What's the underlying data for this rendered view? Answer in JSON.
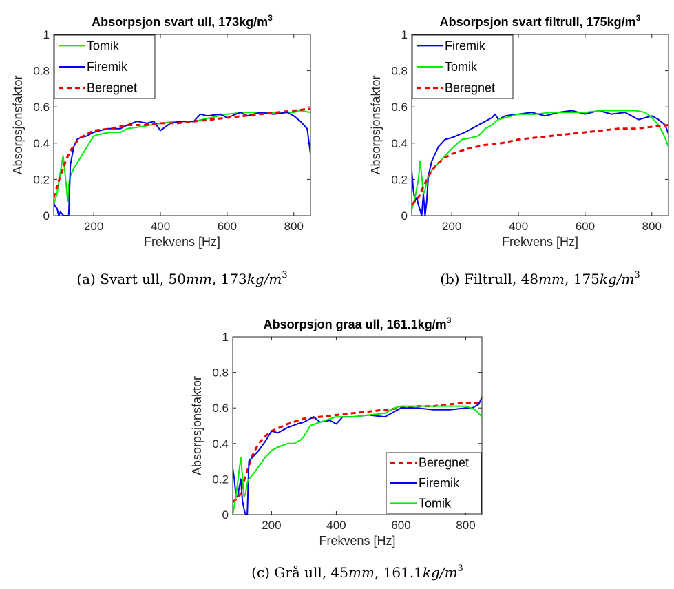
{
  "chart_data": [
    {
      "type": "line",
      "title": "Absorpsjon svart ull, 173kg/m",
      "title_sup": "3",
      "xlabel": "Frekvens [Hz]",
      "ylabel": "Absorpsjonsfaktor",
      "xlim": [
        80,
        850
      ],
      "ylim": [
        0,
        1
      ],
      "xticks": [
        "200",
        "400",
        "600",
        "800"
      ],
      "yticks": [
        "0",
        "0.2",
        "0.4",
        "0.6",
        "0.8",
        "1"
      ],
      "legend_position": "top-left",
      "caption": "(a) Svart ull, 50mm, 173kg/m",
      "caption_sup": "3",
      "series": [
        {
          "name": "Tomik",
          "color": "#00ee00",
          "dash": false,
          "x": [
            80,
            90,
            100,
            108,
            113,
            118,
            122,
            126,
            130,
            140,
            160,
            180,
            200,
            220,
            250,
            280,
            300,
            340,
            400,
            450,
            500,
            550,
            600,
            650,
            700,
            750,
            800,
            820,
            850
          ],
          "y": [
            0.06,
            0.12,
            0.24,
            0.33,
            0.25,
            0.16,
            0.08,
            0.18,
            0.22,
            0.26,
            0.32,
            0.38,
            0.44,
            0.45,
            0.46,
            0.46,
            0.48,
            0.49,
            0.51,
            0.52,
            0.52,
            0.54,
            0.56,
            0.57,
            0.57,
            0.57,
            0.57,
            0.58,
            0.57
          ]
        },
        {
          "name": "Firemik",
          "color": "#0000ee",
          "dash": false,
          "x": [
            80,
            85,
            90,
            95,
            100,
            105,
            110,
            115,
            120,
            125,
            130,
            140,
            150,
            160,
            180,
            200,
            240,
            280,
            300,
            330,
            360,
            380,
            400,
            430,
            460,
            500,
            520,
            540,
            580,
            600,
            640,
            660,
            700,
            740,
            780,
            800,
            820,
            840,
            850
          ],
          "y": [
            0.07,
            0.05,
            0.04,
            0.0,
            0.02,
            0.01,
            0.0,
            0.0,
            0.0,
            0.0,
            0.28,
            0.38,
            0.42,
            0.43,
            0.44,
            0.46,
            0.48,
            0.48,
            0.5,
            0.52,
            0.51,
            0.52,
            0.47,
            0.51,
            0.52,
            0.52,
            0.56,
            0.55,
            0.56,
            0.54,
            0.57,
            0.55,
            0.57,
            0.56,
            0.57,
            0.55,
            0.52,
            0.48,
            0.34
          ]
        },
        {
          "name": "Beregnet",
          "color": "#ee0000",
          "dash": true,
          "x": [
            80,
            100,
            120,
            140,
            160,
            180,
            200,
            250,
            300,
            350,
            400,
            450,
            500,
            550,
            600,
            650,
            700,
            750,
            800,
            850
          ],
          "y": [
            0.1,
            0.22,
            0.32,
            0.39,
            0.43,
            0.45,
            0.47,
            0.48,
            0.5,
            0.5,
            0.51,
            0.51,
            0.52,
            0.53,
            0.54,
            0.55,
            0.56,
            0.57,
            0.58,
            0.59
          ]
        }
      ]
    },
    {
      "type": "line",
      "title": "Absorpsjon svart filtrull, 175kg/m",
      "title_sup": "3",
      "xlabel": "Frekvens [Hz]",
      "ylabel": "Absorpsjonsfaktor",
      "xlim": [
        80,
        850
      ],
      "ylim": [
        0,
        1
      ],
      "xticks": [
        "200",
        "400",
        "600",
        "800"
      ],
      "yticks": [
        "0",
        "0.2",
        "0.4",
        "0.6",
        "0.8",
        "1"
      ],
      "legend_position": "top-left",
      "caption": "(b) Filtrull, 48mm, 175kg/m",
      "caption_sup": "3",
      "series": [
        {
          "name": "Firemik",
          "color": "#0000ee",
          "dash": false,
          "x": [
            80,
            85,
            90,
            95,
            100,
            105,
            110,
            115,
            120,
            125,
            130,
            140,
            160,
            180,
            200,
            240,
            280,
            300,
            320,
            330,
            340,
            360,
            400,
            440,
            480,
            520,
            560,
            600,
            640,
            680,
            720,
            760,
            800,
            820,
            840,
            850
          ],
          "y": [
            0.25,
            0.14,
            0.08,
            0.1,
            0.06,
            0.03,
            0.0,
            0.12,
            0.0,
            0.08,
            0.22,
            0.3,
            0.38,
            0.42,
            0.43,
            0.46,
            0.5,
            0.52,
            0.54,
            0.56,
            0.53,
            0.55,
            0.56,
            0.57,
            0.55,
            0.57,
            0.58,
            0.56,
            0.58,
            0.56,
            0.57,
            0.53,
            0.55,
            0.53,
            0.5,
            0.45
          ]
        },
        {
          "name": "Tomik",
          "color": "#00ee00",
          "dash": false,
          "x": [
            80,
            90,
            100,
            105,
            110,
            115,
            120,
            125,
            130,
            140,
            160,
            180,
            200,
            230,
            260,
            280,
            300,
            320,
            340,
            360,
            400,
            450,
            500,
            550,
            600,
            650,
            700,
            750,
            780,
            800,
            820,
            835,
            850
          ],
          "y": [
            0.03,
            0.1,
            0.2,
            0.3,
            0.22,
            0.12,
            0.14,
            0.19,
            0.22,
            0.25,
            0.29,
            0.33,
            0.37,
            0.42,
            0.43,
            0.44,
            0.48,
            0.5,
            0.53,
            0.54,
            0.56,
            0.56,
            0.57,
            0.57,
            0.57,
            0.58,
            0.58,
            0.58,
            0.57,
            0.54,
            0.5,
            0.45,
            0.38
          ]
        },
        {
          "name": "Beregnet",
          "color": "#ee0000",
          "dash": true,
          "x": [
            80,
            100,
            120,
            140,
            160,
            180,
            200,
            250,
            300,
            350,
            400,
            450,
            500,
            550,
            600,
            650,
            700,
            750,
            800,
            850
          ],
          "y": [
            0.06,
            0.1,
            0.18,
            0.25,
            0.29,
            0.32,
            0.34,
            0.37,
            0.39,
            0.4,
            0.42,
            0.43,
            0.44,
            0.45,
            0.46,
            0.47,
            0.48,
            0.48,
            0.49,
            0.5
          ]
        }
      ]
    },
    {
      "type": "line",
      "title": "Absorpsjon graa ull, 161.1kg/m",
      "title_sup": "3",
      "xlabel": "Frekvens [Hz]",
      "ylabel": "Absorpsjonsfaktor",
      "xlim": [
        80,
        850
      ],
      "ylim": [
        0,
        1
      ],
      "xticks": [
        "200",
        "400",
        "600",
        "800"
      ],
      "yticks": [
        "0",
        "0.2",
        "0.4",
        "0.6",
        "0.8",
        "1"
      ],
      "legend_position": "bottom-right",
      "caption": "(c) Grå ull, 45mm, 161.1kg/m",
      "caption_sup": "3",
      "series": [
        {
          "name": "Beregnet",
          "color": "#ee0000",
          "dash": true,
          "x": [
            80,
            100,
            120,
            140,
            160,
            180,
            200,
            250,
            300,
            350,
            400,
            450,
            500,
            550,
            600,
            650,
            700,
            750,
            800,
            850
          ],
          "y": [
            0.07,
            0.1,
            0.22,
            0.33,
            0.4,
            0.44,
            0.47,
            0.51,
            0.54,
            0.55,
            0.56,
            0.57,
            0.58,
            0.59,
            0.6,
            0.61,
            0.61,
            0.62,
            0.63,
            0.63
          ]
        },
        {
          "name": "Firemik",
          "color": "#0000ee",
          "dash": false,
          "x": [
            80,
            85,
            90,
            95,
            100,
            105,
            110,
            115,
            120,
            125,
            130,
            140,
            160,
            180,
            200,
            220,
            250,
            280,
            300,
            330,
            350,
            380,
            400,
            420,
            450,
            500,
            550,
            600,
            650,
            700,
            750,
            800,
            820,
            840,
            850
          ],
          "y": [
            0.26,
            0.2,
            0.1,
            0.1,
            0.15,
            0.2,
            0.08,
            0.03,
            0.0,
            0.0,
            0.3,
            0.32,
            0.36,
            0.41,
            0.47,
            0.46,
            0.49,
            0.51,
            0.52,
            0.55,
            0.52,
            0.53,
            0.51,
            0.55,
            0.55,
            0.56,
            0.55,
            0.6,
            0.6,
            0.59,
            0.59,
            0.6,
            0.6,
            0.62,
            0.66
          ]
        },
        {
          "name": "Tomik",
          "color": "#00ee00",
          "dash": false,
          "x": [
            80,
            90,
            100,
            105,
            110,
            115,
            120,
            125,
            130,
            140,
            160,
            180,
            200,
            220,
            250,
            270,
            290,
            300,
            320,
            350,
            400,
            450,
            500,
            550,
            580,
            600,
            650,
            700,
            750,
            800,
            830,
            850
          ],
          "y": [
            0.0,
            0.1,
            0.25,
            0.32,
            0.22,
            0.1,
            0.12,
            0.18,
            0.2,
            0.22,
            0.27,
            0.32,
            0.36,
            0.38,
            0.4,
            0.4,
            0.42,
            0.44,
            0.5,
            0.52,
            0.55,
            0.55,
            0.56,
            0.57,
            0.6,
            0.61,
            0.61,
            0.61,
            0.61,
            0.61,
            0.59,
            0.55
          ]
        }
      ]
    }
  ]
}
